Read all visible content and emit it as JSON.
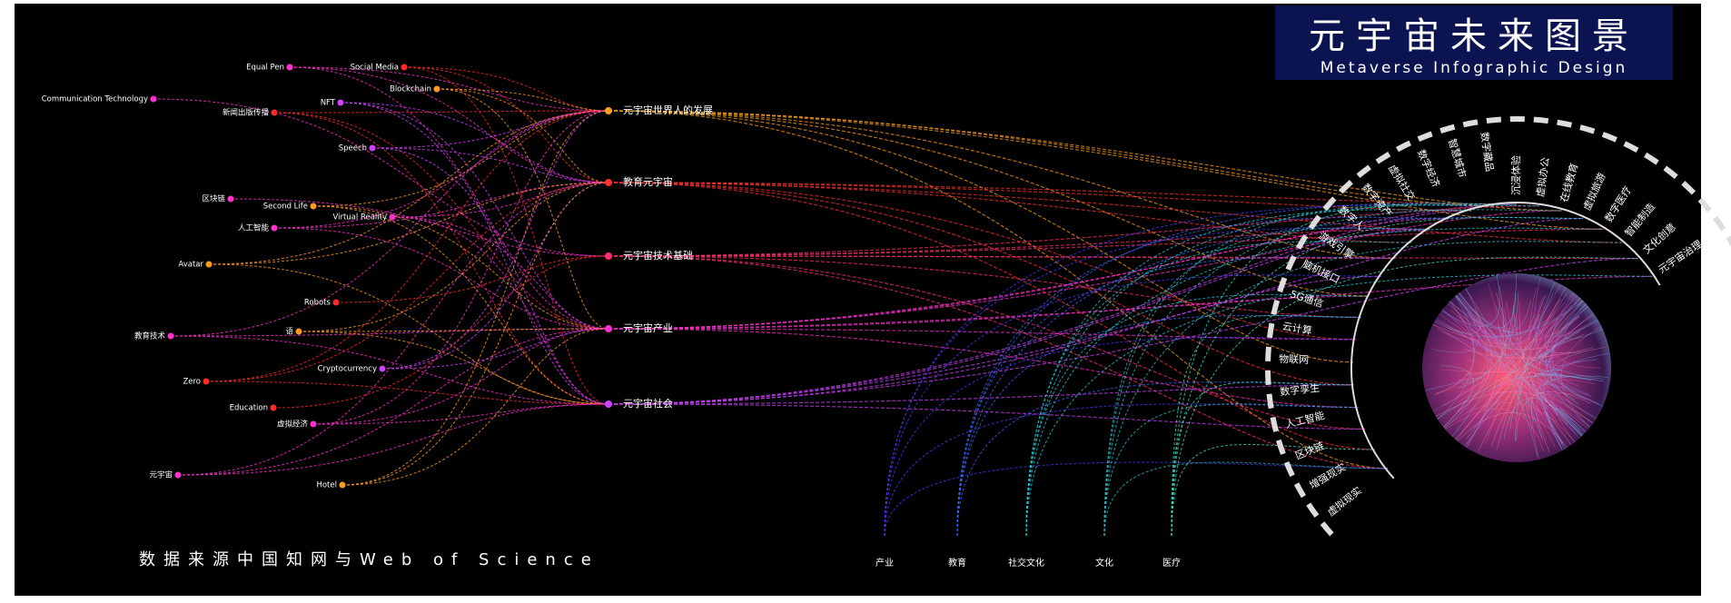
{
  "header": {
    "title": "元宇宙未来图景",
    "subtitle": "Metaverse Infographic Design"
  },
  "source_note": "数据来源中国知网与Web of Science",
  "left_nodes": [
    "Equal Pen",
    "Social Media",
    "Communication Technology",
    "新闻出版传播",
    "NFT",
    "Blockchain",
    "Speech",
    "区块链",
    "Second Life",
    "Virtual Reality",
    "人工智能",
    "Avatar",
    "Robots",
    "教育技术",
    "语",
    "Cryptocurrency",
    "Zero",
    "Education",
    "虚拟经济",
    "元宇宙",
    "Hotel"
  ],
  "center_nodes": [
    "元宇宙世界人的发展",
    "教育元宇宙",
    "元宇宙技术基础",
    "元宇宙产业",
    "元宇宙社会"
  ],
  "arc_labels": [
    "虚拟现实",
    "增强现实",
    "区块链",
    "人工智能",
    "数字孪生",
    "物联网",
    "云计算",
    "5G通信",
    "脑机接口",
    "游戏引擎",
    "数字人",
    "数字资产",
    "虚拟社交",
    "数字经济",
    "智慧城市",
    "数字藏品",
    "沉浸体验",
    "虚拟办公",
    "在线教育",
    "虚拟旅游",
    "数字医疗",
    "智能制造",
    "文化创意",
    "元宇宙治理"
  ],
  "bottom_labels": [
    "产业",
    "教育",
    "社交文化",
    "文化",
    "医疗"
  ]
}
